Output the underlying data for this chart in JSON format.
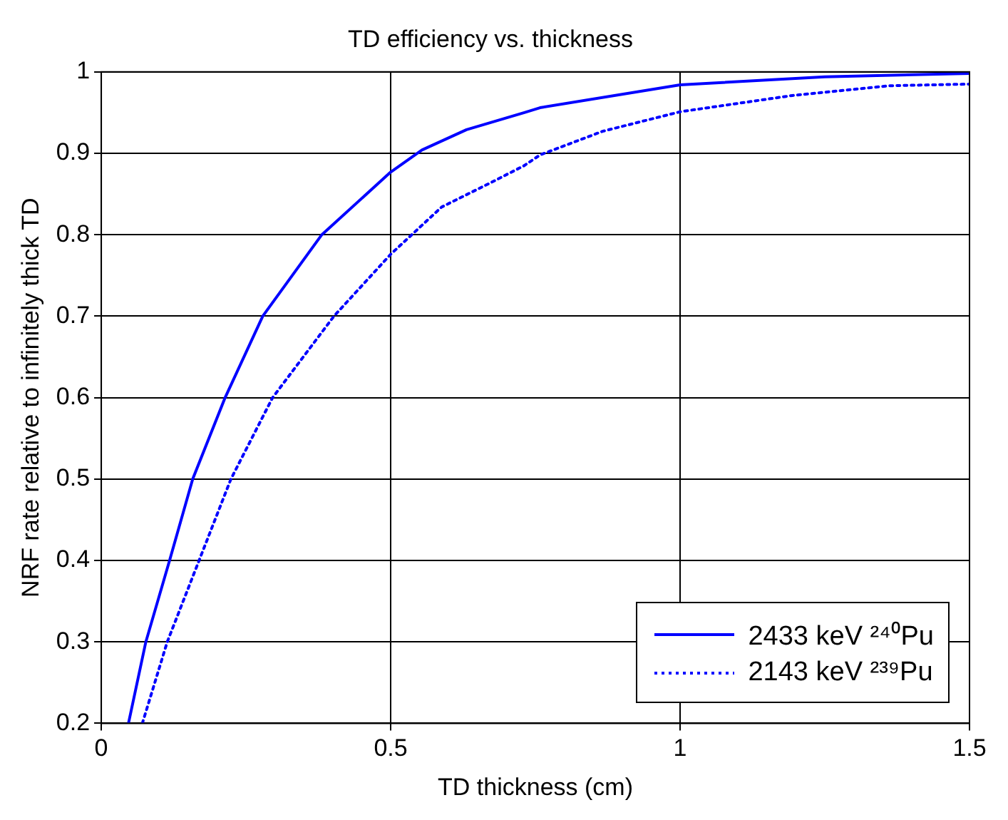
{
  "chart_data": {
    "type": "line",
    "title": "TD efficiency vs. thickness",
    "xlabel": "TD thickness (cm)",
    "ylabel": "NRF rate relative to infinitely thick TD",
    "series": [
      {
        "name": "2433 keV ²⁴⁰Pu",
        "color": "#0000ff",
        "line_style": "solid",
        "x": [
          0.047,
          0.077,
          0.118,
          0.158,
          0.214,
          0.279,
          0.381,
          0.5,
          0.554,
          0.631,
          0.731,
          0.758,
          1.0,
          1.25,
          1.5
        ],
        "values": [
          0.2,
          0.3,
          0.4,
          0.5,
          0.6,
          0.7,
          0.8,
          0.877,
          0.904,
          0.929,
          0.95,
          0.956,
          0.984,
          0.994,
          0.998
        ]
      },
      {
        "name": "2143 keV ²³⁹Pu",
        "color": "#0000ff",
        "line_style": "dotted",
        "x": [
          0.071,
          0.114,
          0.169,
          0.224,
          0.296,
          0.402,
          0.5,
          0.588,
          0.673,
          0.731,
          0.758,
          0.866,
          1.0,
          1.194,
          1.362,
          1.5
        ],
        "values": [
          0.2,
          0.3,
          0.4,
          0.5,
          0.6,
          0.7,
          0.776,
          0.834,
          0.864,
          0.885,
          0.898,
          0.927,
          0.951,
          0.971,
          0.983,
          0.985
        ]
      }
    ],
    "xlim": [
      0,
      1.5
    ],
    "xticks": [
      0,
      0.5,
      1,
      1.5
    ],
    "ylim": [
      0.2,
      1
    ],
    "yticks": [
      0.2,
      0.3,
      0.4,
      0.5,
      0.6,
      0.7,
      0.8,
      0.9,
      1
    ],
    "grid": true,
    "legend": "bottom right",
    "marker": "none"
  }
}
